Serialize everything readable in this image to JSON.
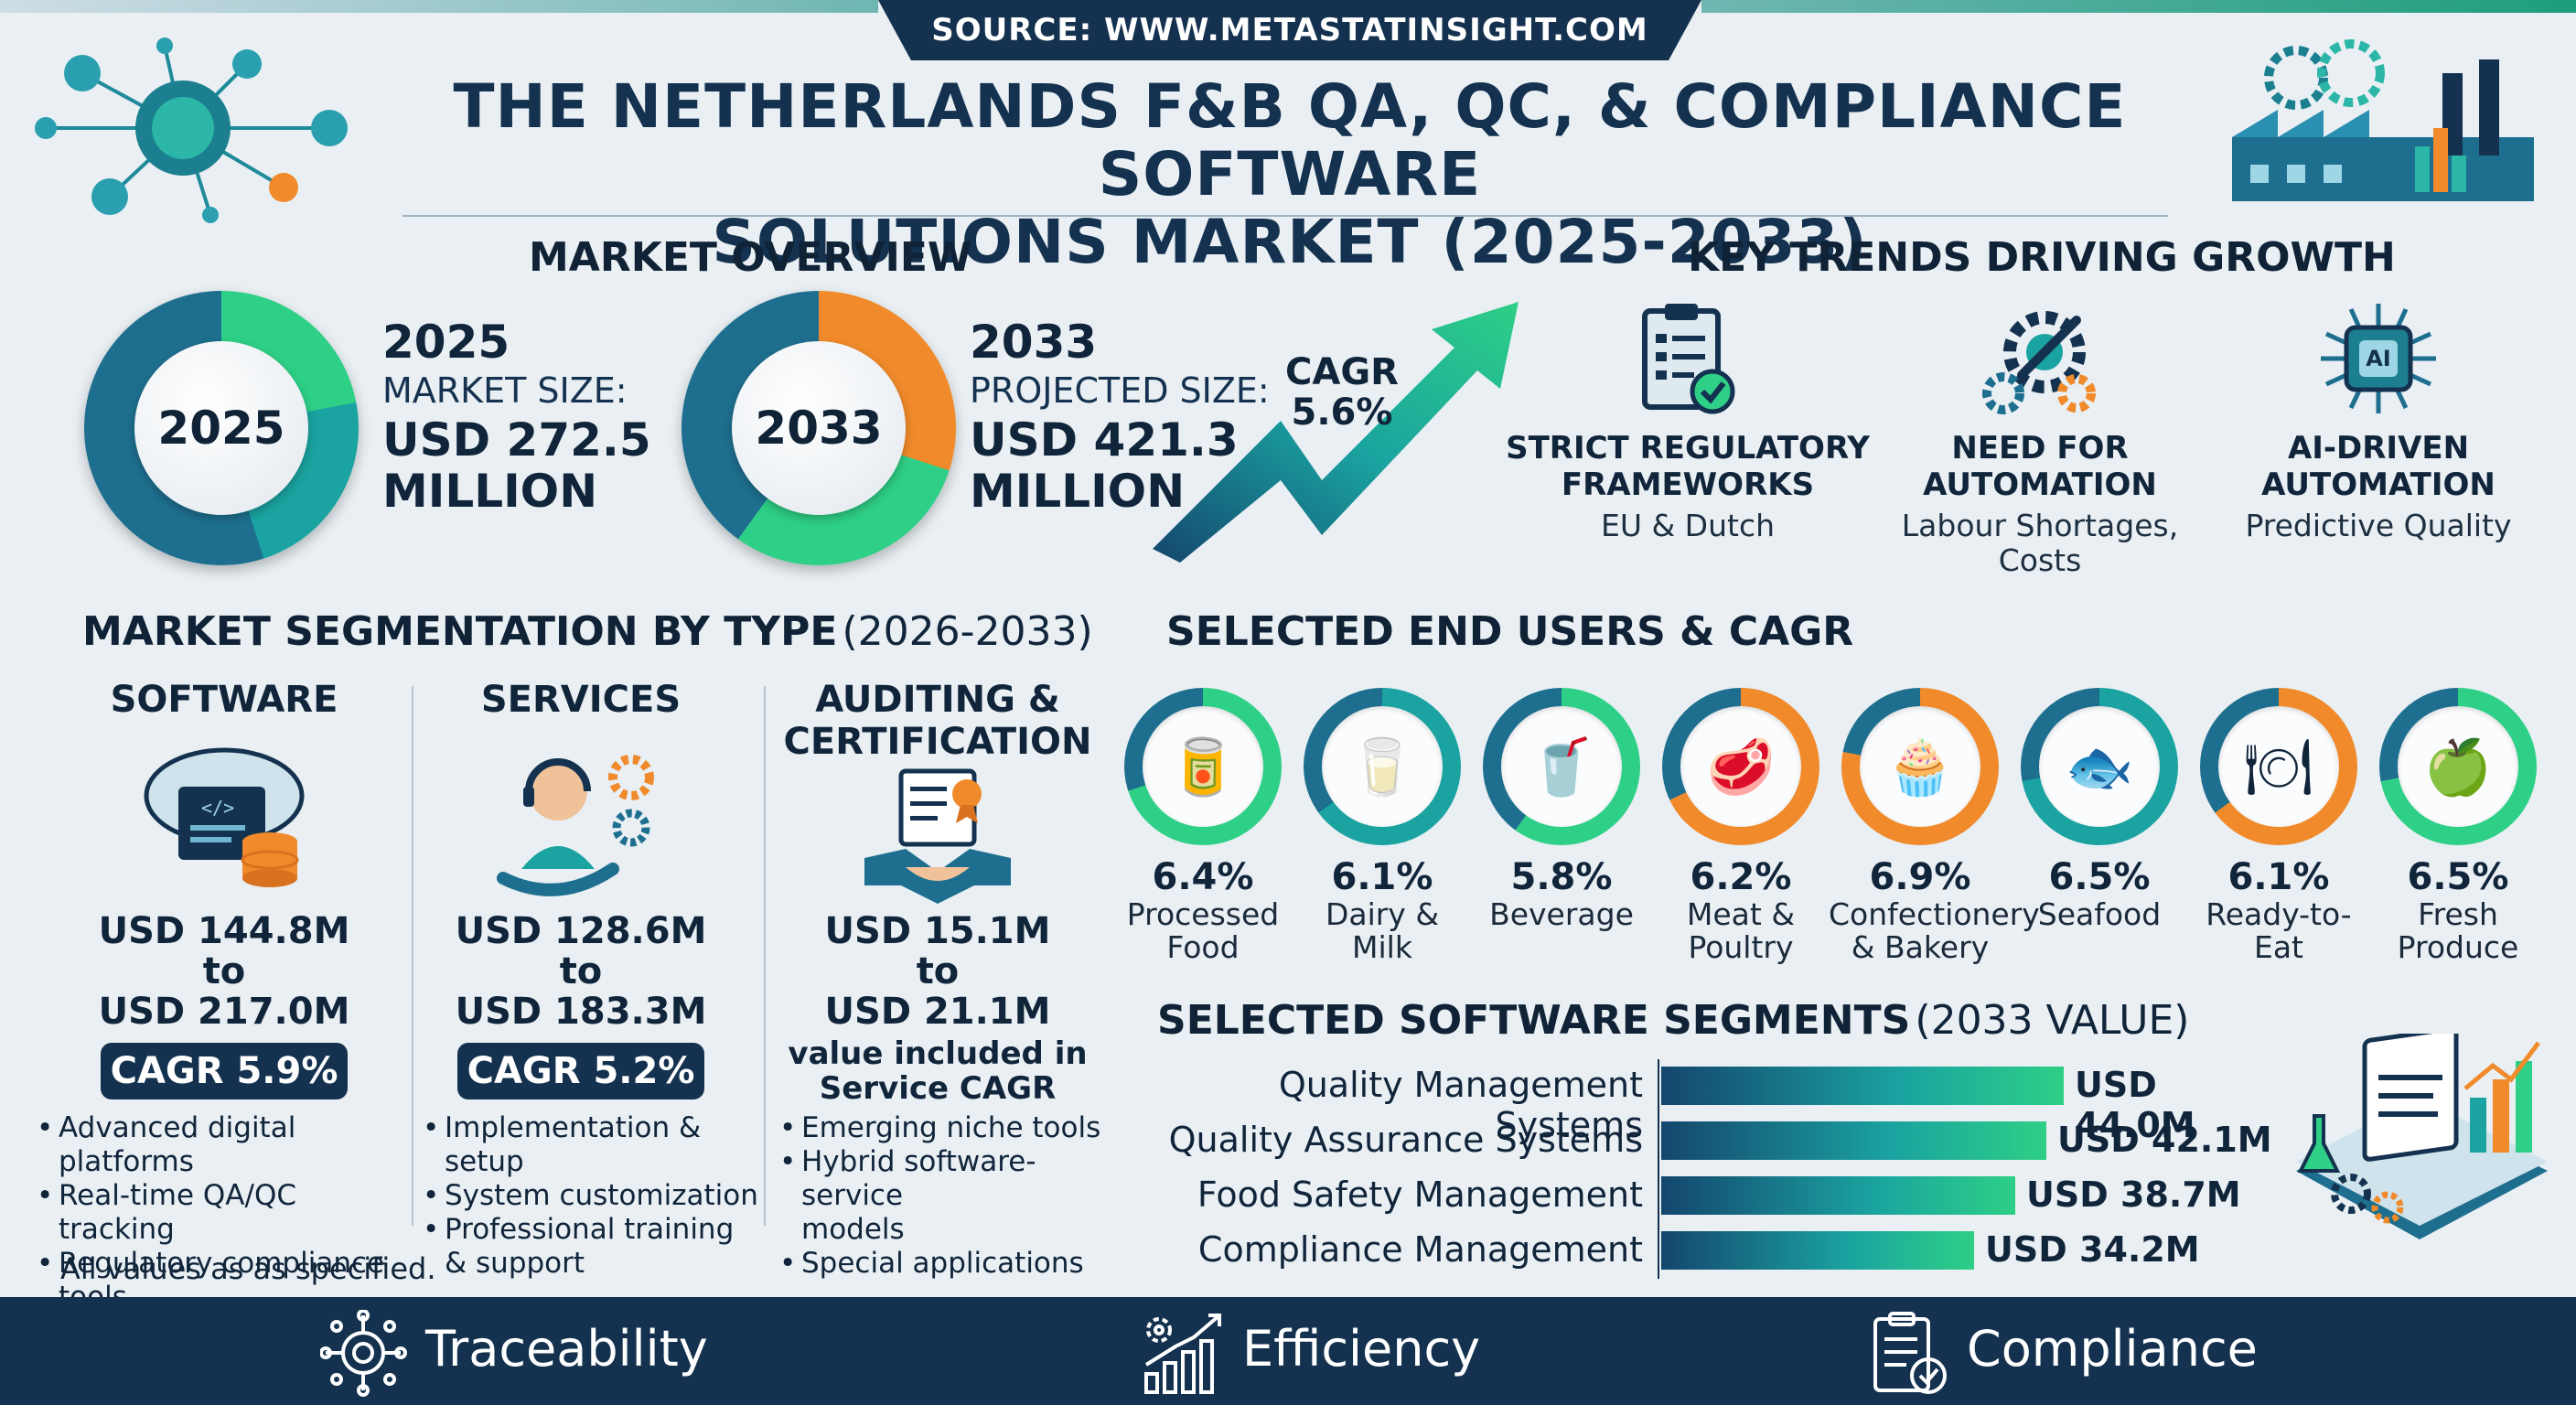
{
  "source": "SOURCE: WWW.METASTATINSIGHT.COM",
  "title_line1": "THE NETHERLANDS F&B QA, QC, & COMPLIANCE SOFTWARE",
  "title_line2": "SOLUTIONS MARKET (2025-2033)",
  "overview": {
    "heading": "MARKET OVERVIEW",
    "y2025": {
      "ring_label": "2025",
      "year": "2025",
      "label": "MARKET SIZE:",
      "value_line1": "USD 272.5",
      "value_line2": "MILLION"
    },
    "y2033": {
      "ring_label": "2033",
      "year": "2033",
      "label": "PROJECTED SIZE:",
      "value_line1": "USD 421.3",
      "value_line2": "MILLION"
    },
    "cagr_label": "CAGR",
    "cagr_value": "5.6%"
  },
  "trends": {
    "heading": "KEY TRENDS DRIVING GROWTH",
    "items": [
      {
        "icon": "clipboard-check-icon",
        "title_line1": "STRICT REGULATORY",
        "title_line2": "FRAMEWORKS",
        "sub_line1": "EU & Dutch",
        "sub_line2": ""
      },
      {
        "icon": "gears-wrench-icon",
        "title_line1": "NEED FOR",
        "title_line2": "AUTOMATION",
        "sub_line1": "Labour Shortages,",
        "sub_line2": "Costs"
      },
      {
        "icon": "ai-chip-icon",
        "title_line1": "AI-DRIVEN",
        "title_line2": "AUTOMATION",
        "sub_line1": "Predictive Quality",
        "sub_line2": ""
      }
    ]
  },
  "segmentation": {
    "heading": "MARKET SEGMENTATION BY TYPE",
    "heading_period": "(2026-2033)",
    "software": {
      "title": "SOFTWARE",
      "from": "USD 144.8M",
      "to_word": "to",
      "to": "USD 217.0M",
      "cagr": "CAGR 5.9%",
      "bullets": [
        "Advanced digital platforms",
        "Real-time QA/QC tracking",
        "Regulatory compliance",
        "tools"
      ]
    },
    "services": {
      "title": "SERVICES",
      "from": "USD 128.6M",
      "to_word": "to",
      "to": "USD 183.3M",
      "cagr": "CAGR 5.2%",
      "bullets": [
        "Implementation & setup",
        "System customization",
        "Professional training",
        "& support"
      ]
    },
    "auditing": {
      "title_line1": "AUDITING &",
      "title_line2": "CERTIFICATION",
      "from": "USD 15.1M",
      "to_word": "to",
      "to": "USD 21.1M",
      "note_line1": "value included in",
      "note_line2": "Service CAGR",
      "bullets": [
        "Emerging niche tools",
        "Hybrid software-service",
        "models",
        "Special applications"
      ]
    },
    "footnote": "All values as as specified."
  },
  "end_users": {
    "heading": "SELECTED END USERS & CAGR",
    "items": [
      {
        "pct": "6.4%",
        "line1": "Processed",
        "line2": "Food",
        "icon": "jar-bowl-icon",
        "fill": 0.7
      },
      {
        "pct": "6.1%",
        "line1": "Dairy &",
        "line2": "Milk",
        "icon": "milk-carton-icon",
        "fill": 0.65
      },
      {
        "pct": "5.8%",
        "line1": "Beverage",
        "line2": "",
        "icon": "drink-glass-icon",
        "fill": 0.6
      },
      {
        "pct": "6.2%",
        "line1": "Meat &",
        "line2": "Poultry",
        "icon": "steak-icon",
        "fill": 0.68
      },
      {
        "pct": "6.9%",
        "line1": "Confectionery",
        "line2": "& Bakery",
        "icon": "muffin-icon",
        "fill": 0.78
      },
      {
        "pct": "6.5%",
        "line1": "Seafood",
        "line2": "",
        "icon": "fish-icon",
        "fill": 0.72
      },
      {
        "pct": "6.1%",
        "line1": "Ready-to-",
        "line2": "Eat",
        "icon": "plate-cutlery-icon",
        "fill": 0.65
      },
      {
        "pct": "6.5%",
        "line1": "Fresh",
        "line2": "Produce",
        "icon": "apple-icon",
        "fill": 0.72
      }
    ]
  },
  "software_segments": {
    "heading": "SELECTED SOFTWARE SEGMENTS",
    "heading_period": "(2033 VALUE)",
    "max": 44.0,
    "items": [
      {
        "label": "Quality Management Systems",
        "value": 44.0,
        "text": "USD 44.0M"
      },
      {
        "label": "Quality Assurance Systems",
        "value": 42.1,
        "text": "USD 42.1M"
      },
      {
        "label": "Food Safety Management",
        "value": 38.7,
        "text": "USD 38.7M"
      },
      {
        "label": "Compliance Management",
        "value": 34.2,
        "text": "USD 34.2M"
      }
    ]
  },
  "footer": {
    "items": [
      {
        "label": "Traceability",
        "icon": "network-target-icon"
      },
      {
        "label": "Efficiency",
        "icon": "gear-chart-icon"
      },
      {
        "label": "Compliance",
        "icon": "clipboard-check-icon"
      }
    ]
  },
  "colors": {
    "navy": "#14324f",
    "teal": "#1aa3a0",
    "green": "#2ecf86",
    "orange": "#f08a2b"
  }
}
